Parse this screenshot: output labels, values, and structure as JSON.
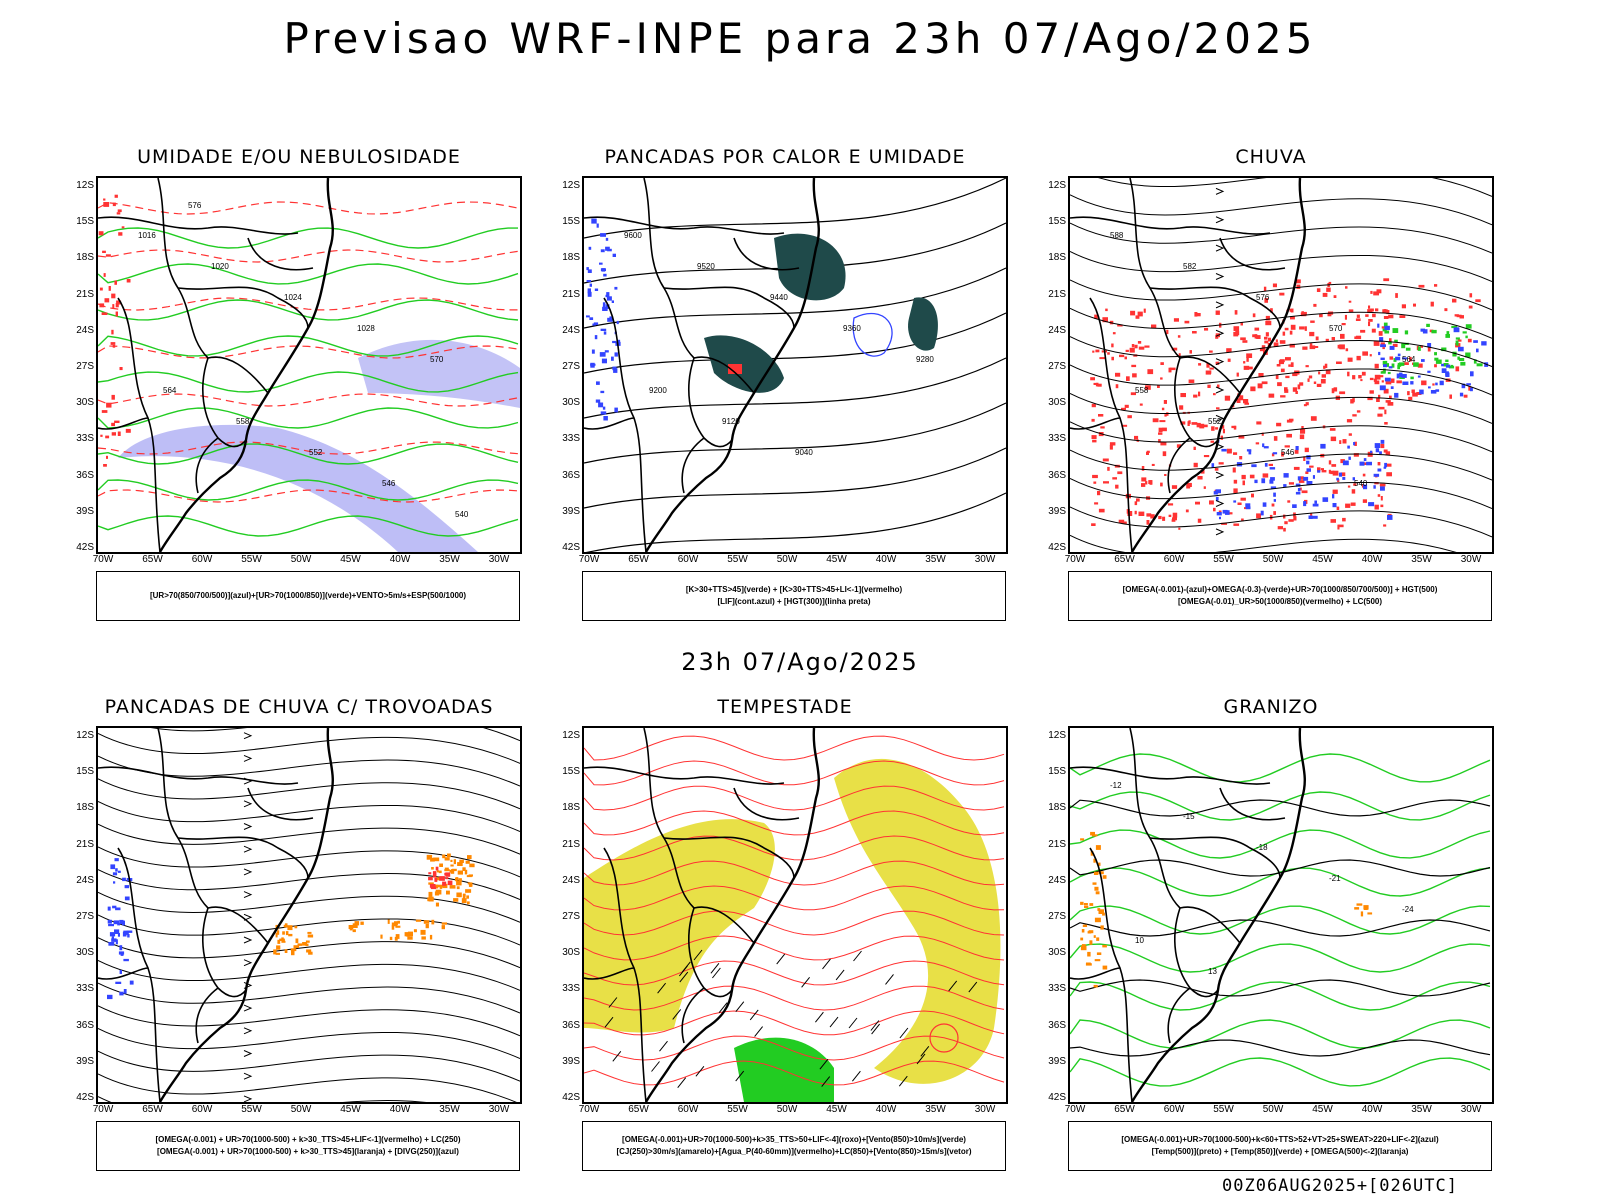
{
  "page": {
    "title": "Previsao WRF-INPE  para 23h 07/Ago/2025",
    "subtitle": "23h 07/Ago/2025",
    "footer": "00Z06AUG2025+[026UTC]"
  },
  "axes": {
    "lat_labels": [
      "12S",
      "15S",
      "18S",
      "21S",
      "24S",
      "27S",
      "30S",
      "33S",
      "36S",
      "39S",
      "42S"
    ],
    "lon_labels": [
      "70W",
      "65W",
      "60W",
      "55W",
      "50W",
      "45W",
      "40W",
      "35W",
      "30W"
    ]
  },
  "colors": {
    "green": "#22cc22",
    "red": "#ff3333",
    "blue": "#3344ff",
    "dark_teal": "#1f4a4a",
    "orange": "#ff8800",
    "yellow": "#e6dd33",
    "lavender": "#8888ee"
  },
  "panels": [
    {
      "title": "UMIDADE E/OU NEBULOSIDADE",
      "legend": [
        "[UR>70(850/700/500)](azul)+[UR>70(1000/850)](verde)+VENTO>5m/s+ESP(500/1000)"
      ],
      "contour_labels": [
        "1016",
        "1020",
        "1024",
        "1028",
        "570",
        "564",
        "558",
        "552",
        "546",
        "540",
        "576"
      ]
    },
    {
      "title": "PANCADAS POR CALOR E UMIDADE",
      "legend": [
        "[K>30+TTS>45](verde) + [K>30+TTS>45+LI<-1](vermelho)",
        "[LIF](cont.azul) + [HGT(300)](linha preta)"
      ],
      "contour_labels": [
        "9600",
        "9520",
        "9440",
        "9360",
        "9280",
        "9200",
        "9120",
        "9040"
      ]
    },
    {
      "title": "CHUVA",
      "legend": [
        "[OMEGA(-0.001)-(azul)+OMEGA(-0.3)-(verde)+UR>70(1000/850/700/500)] + HGT(500)",
        "[OMEGA(-0.01)_UR>50(1000/850)(vermelho) + LC(500)"
      ],
      "contour_labels": [
        "588",
        "582",
        "576",
        "570",
        "564",
        "558",
        "552",
        "546",
        "540"
      ]
    },
    {
      "title": "PANCADAS DE CHUVA C/ TROVOADAS",
      "legend": [
        "[OMEGA(-0.001) + UR>70(1000-500) + k>30_TTS>45+LIF<-1](vermelho) + LC(250)",
        "[OMEGA(-0.001) + UR>70(1000-500) + k>30_TTS>45](laranja) + [DIVG(250)](azul)"
      ],
      "contour_labels": []
    },
    {
      "title": "TEMPESTADE",
      "legend": [
        "[OMEGA(-0.001)+UR>70(1000-500)+k>35_TTS>50+LIF<-4](roxo)+[Vento(850)>10m/s](verde)",
        "[CJ(250)>30m/s](amarelo)+[Agua_P(40-60mm)](vermelho)+LC(850)+[Vento(850)>15m/s](vetor)"
      ],
      "contour_labels": []
    },
    {
      "title": "GRANIZO",
      "legend": [
        "[OMEGA(-0.001)+UR>70(1000-500)+k<60+TTS>52+VT>25+SWEAT>220+LIF<-2](azul)",
        "[Temp(500)](preto) + [Temp(850)](verde) + [OMEGA(500)<-2](laranja)"
      ],
      "contour_labels": [
        "-12",
        "-15",
        "-18",
        "-21",
        "-24",
        "10",
        "13"
      ]
    }
  ]
}
